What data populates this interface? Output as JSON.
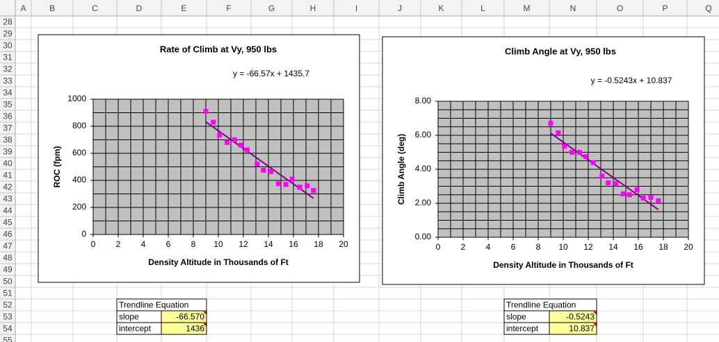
{
  "sheet": {
    "columns": [
      "A",
      "B",
      "C",
      "D",
      "E",
      "F",
      "G",
      "H",
      "I",
      "J",
      "K",
      "L",
      "M",
      "N",
      "O",
      "P",
      "Q"
    ],
    "rows": [
      "28",
      "29",
      "30",
      "31",
      "32",
      "33",
      "34",
      "35",
      "36",
      "37",
      "38",
      "39",
      "40",
      "41",
      "42",
      "43",
      "44",
      "45",
      "46",
      "47",
      "48",
      "49",
      "50",
      "51",
      "52",
      "53",
      "54",
      "55"
    ]
  },
  "chart_data": [
    {
      "type": "scatter",
      "title": "Rate of Climb at Vy, 950 lbs",
      "trendline_label": "y = -66.57x + 1435.7",
      "xlabel": "Density Altitude in Thousands of Ft",
      "ylabel": "ROC (fpm)",
      "x": [
        9.0,
        9.6,
        10.1,
        10.7,
        11.3,
        11.8,
        12.3,
        13.1,
        13.6,
        14.2,
        14.8,
        15.4,
        15.9,
        16.5,
        17.1,
        17.6
      ],
      "values": [
        910,
        830,
        735,
        680,
        700,
        660,
        625,
        520,
        475,
        465,
        375,
        370,
        410,
        350,
        360,
        325
      ],
      "color": "#ff00ff",
      "trendline_color": "#800080",
      "xlim": [
        0,
        20
      ],
      "xticks": [
        0,
        2,
        4,
        6,
        8,
        10,
        12,
        14,
        16,
        18,
        20
      ],
      "ylim": [
        0,
        1000
      ],
      "yticks": [
        0,
        200,
        400,
        600,
        800,
        1000
      ],
      "grid": true,
      "minor_grid": {
        "x": 1,
        "y": 100
      },
      "plot_background": "#c0c0c0"
    },
    {
      "type": "scatter",
      "title": "Climb Angle at Vy, 950 lbs",
      "trendline_label": "y = -0.5243x + 10.837",
      "xlabel": "Density Altitude in Thousands of Ft",
      "ylabel": "Climb Angle (deg)",
      "x": [
        9.0,
        9.6,
        10.1,
        10.7,
        11.3,
        11.8,
        12.4,
        13.1,
        13.6,
        14.2,
        14.8,
        15.3,
        15.9,
        16.4,
        17.0,
        17.6
      ],
      "values": [
        6.7,
        6.15,
        5.35,
        5.0,
        5.0,
        4.75,
        4.4,
        3.6,
        3.2,
        3.15,
        2.55,
        2.5,
        2.8,
        2.3,
        2.35,
        2.15
      ],
      "color": "#ff00ff",
      "trendline_color": "#800080",
      "xlim": [
        0,
        20
      ],
      "xticks": [
        0,
        2,
        4,
        6,
        8,
        10,
        12,
        14,
        16,
        18,
        20
      ],
      "ylim": [
        0,
        8
      ],
      "yticks": [
        {
          "value": 0,
          "label": "0.00"
        },
        {
          "value": 2,
          "label": "2.00"
        },
        {
          "value": 4,
          "label": "4.00"
        },
        {
          "value": 6,
          "label": "6.00"
        },
        {
          "value": 8,
          "label": "8.00"
        }
      ],
      "grid": true,
      "minor_grid": {
        "x": 1,
        "y": 0.5
      },
      "plot_background": "#c0c0c0"
    }
  ],
  "tables": [
    {
      "header": "Trendline Equation",
      "rows": [
        [
          "slope",
          "-66.570"
        ],
        [
          "intercept",
          "1436"
        ]
      ]
    },
    {
      "header": "Trendline Equation",
      "rows": [
        [
          "slope",
          "-0.5243"
        ],
        [
          "intercept",
          "10.837"
        ]
      ]
    }
  ]
}
